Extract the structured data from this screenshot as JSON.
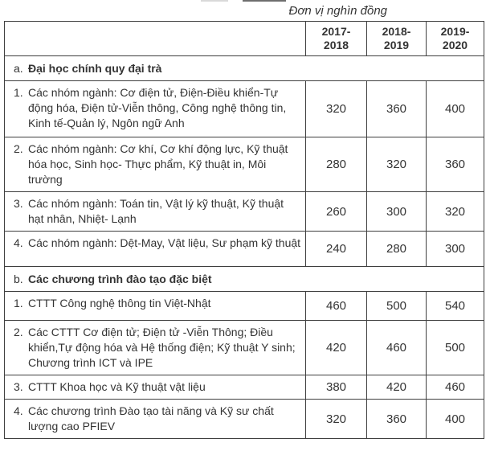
{
  "caption": "Đơn vị nghìn đồng",
  "colors": {
    "border": "#3f3f3f",
    "text": "#343434",
    "background": "#ffffff"
  },
  "table": {
    "columns": [
      "2017-\n2018",
      "2018-\n2019",
      "2019-\n2020"
    ],
    "rows": [
      {
        "kind": "section",
        "num": "a.",
        "label": "Đại học chính quy đại trà"
      },
      {
        "kind": "data",
        "num": "1.",
        "label": "Các nhóm ngành: Cơ điện tử, Điện-Điều khiển-Tự động hóa, Điện tử-Viễn thông, Công nghệ thông tin, Kinh tế-Quản lý, Ngôn ngữ Anh",
        "values": [
          "320",
          "360",
          "400"
        ]
      },
      {
        "kind": "data",
        "num": "2.",
        "label": "Các nhóm ngành: Cơ khí, Cơ khí động lực, Kỹ thuật hóa học, Sinh học- Thực phẩm, Kỹ thuật in, Môi trường",
        "values": [
          "280",
          "320",
          "360"
        ]
      },
      {
        "kind": "data",
        "num": "3.",
        "label": "Các nhóm ngành: Toán tin, Vật lý kỹ thuật, Kỹ thuật hạt nhân, Nhiệt- Lạnh",
        "values": [
          "260",
          "300",
          "320"
        ]
      },
      {
        "kind": "data",
        "num": "4.",
        "label": "Các nhóm ngành: Dệt-May, Vật liệu, Sư phạm kỹ thuật",
        "values": [
          "240",
          "280",
          "300"
        ]
      },
      {
        "kind": "section",
        "num": "b.",
        "label": "Các chương trình đào tạo đặc biệt"
      },
      {
        "kind": "data",
        "num": "1.",
        "label": "CTTT Công nghệ thông tin Việt-Nhật",
        "values": [
          "460",
          "500",
          "540"
        ]
      },
      {
        "kind": "data",
        "num": "2.",
        "label": "Các CTTT Cơ điện tử; Điện tử -Viễn Thông; Điều khiển,Tự động hóa và Hệ thống điện; Kỹ thuật Y sinh; Chương trình ICT và IPE",
        "values": [
          "420",
          "460",
          "500"
        ]
      },
      {
        "kind": "data",
        "num": "3.",
        "label": "CTTT Khoa học và Kỹ thuật vật liệu",
        "values": [
          "380",
          "420",
          "460"
        ]
      },
      {
        "kind": "data",
        "num": "4.",
        "label": "Các chương trình Đào tạo tài năng và Kỹ sư chất lượng cao PFIEV",
        "values": [
          "320",
          "360",
          "400"
        ]
      }
    ]
  }
}
